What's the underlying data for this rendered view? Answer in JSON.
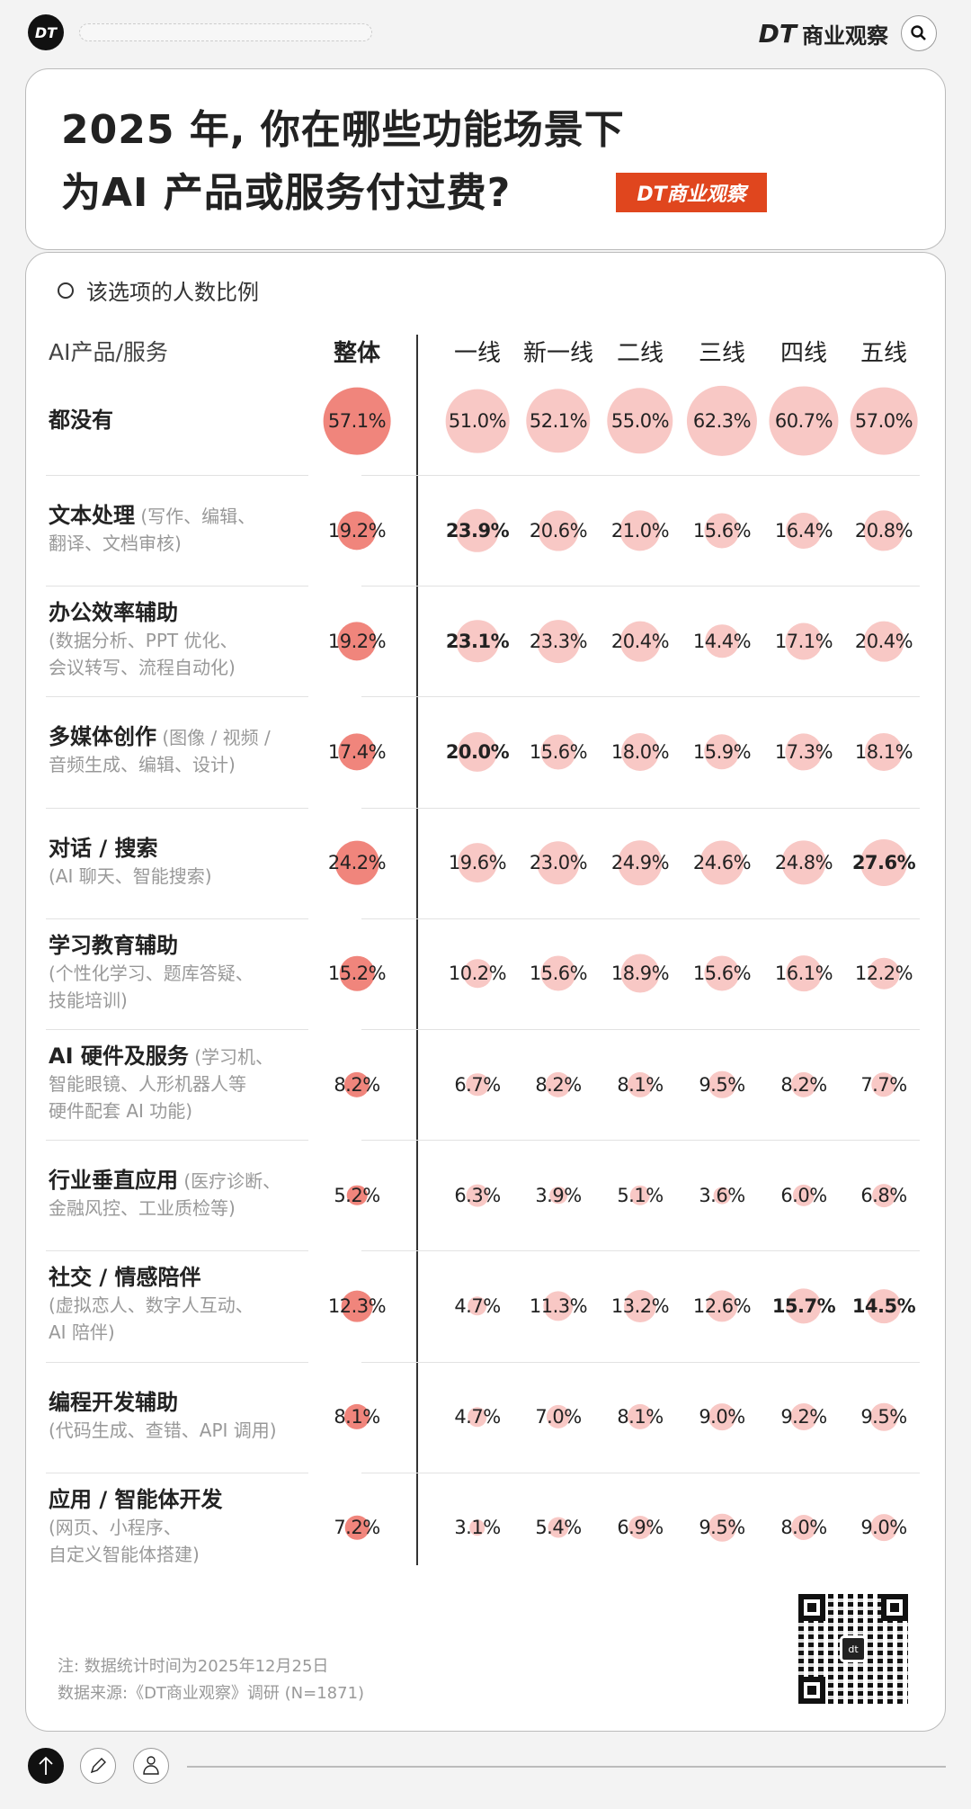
{
  "top_bar": {
    "logo": "DT",
    "brand_dt": "DT",
    "brand_name": "商业观察",
    "search_icon": "search-icon"
  },
  "title": {
    "line1": "2025 年, 你在哪些功能场景下",
    "line2": "为AI 产品或服务付过费?",
    "badge": "DT商业观察"
  },
  "colors": {
    "total": "#f0857c",
    "city": "#f8c8c5",
    "badge": "#e0461e"
  },
  "chart_data": {
    "type": "table",
    "title": "2025 年, 你在哪些功能场景下为AI 产品或服务付过费?",
    "legend": "该选项的人数比例",
    "row_header": "AI产品/服务",
    "columns": [
      "整体",
      "一线",
      "新一线",
      "二线",
      "三线",
      "四线",
      "五线"
    ],
    "unit": "%",
    "rows": [
      {
        "main": "都没有",
        "sub": "",
        "values": [
          57.1,
          51.0,
          52.1,
          55.0,
          62.3,
          60.7,
          57.0
        ],
        "bold": []
      },
      {
        "main": "文本处理",
        "sub": " (写作、编辑、\n翻译、文档审核)",
        "values": [
          19.2,
          23.9,
          20.6,
          21.0,
          15.6,
          16.4,
          20.8
        ],
        "bold": [
          1
        ]
      },
      {
        "main": "办公效率辅助",
        "sub": "\n(数据分析、PPT 优化、\n会议转写、流程自动化)",
        "values": [
          19.2,
          23.1,
          23.3,
          20.4,
          14.4,
          17.1,
          20.4
        ],
        "bold": [
          1
        ]
      },
      {
        "main": "多媒体创作",
        "sub": " (图像 / 视频 /\n音频生成、编辑、设计)",
        "values": [
          17.4,
          20.0,
          15.6,
          18.0,
          15.9,
          17.3,
          18.1
        ],
        "bold": [
          1
        ]
      },
      {
        "main": "对话 / 搜索",
        "sub": "\n(AI 聊天、智能搜索)",
        "values": [
          24.2,
          19.6,
          23.0,
          24.9,
          24.6,
          24.8,
          27.6
        ],
        "bold": [
          6
        ]
      },
      {
        "main": "学习教育辅助",
        "sub": "\n(个性化学习、题库答疑、\n技能培训)",
        "values": [
          15.2,
          10.2,
          15.6,
          18.9,
          15.6,
          16.1,
          12.2
        ],
        "bold": []
      },
      {
        "main": "AI 硬件及服务",
        "sub": " (学习机、\n智能眼镜、人形机器人等\n硬件配套 AI 功能)",
        "values": [
          8.2,
          6.7,
          8.2,
          8.1,
          9.5,
          8.2,
          7.7
        ],
        "bold": []
      },
      {
        "main": "行业垂直应用",
        "sub": " (医疗诊断、\n金融风控、工业质检等)",
        "values": [
          5.2,
          6.3,
          3.9,
          5.1,
          3.6,
          6.0,
          6.8
        ],
        "bold": []
      },
      {
        "main": "社交 / 情感陪伴",
        "sub": "\n(虚拟恋人、数字人互动、\nAI 陪伴)",
        "values": [
          12.3,
          4.7,
          11.3,
          13.2,
          12.6,
          15.7,
          14.5
        ],
        "bold": [
          5,
          6
        ]
      },
      {
        "main": "编程开发辅助",
        "sub": "\n(代码生成、查错、API 调用)",
        "values": [
          8.1,
          4.7,
          7.0,
          8.1,
          9.0,
          9.2,
          9.5
        ],
        "bold": []
      },
      {
        "main": "应用 / 智能体开发",
        "sub": "\n(网页、小程序、\n自定义智能体搭建)",
        "values": [
          7.2,
          3.1,
          5.4,
          6.9,
          9.5,
          8.0,
          9.0
        ],
        "bold": []
      }
    ]
  },
  "footer": {
    "note": "注: 数据统计时间为2025年12月25日",
    "source": "数据来源:《DT商业观察》调研 (N=1871)",
    "qr_label": "dt"
  }
}
